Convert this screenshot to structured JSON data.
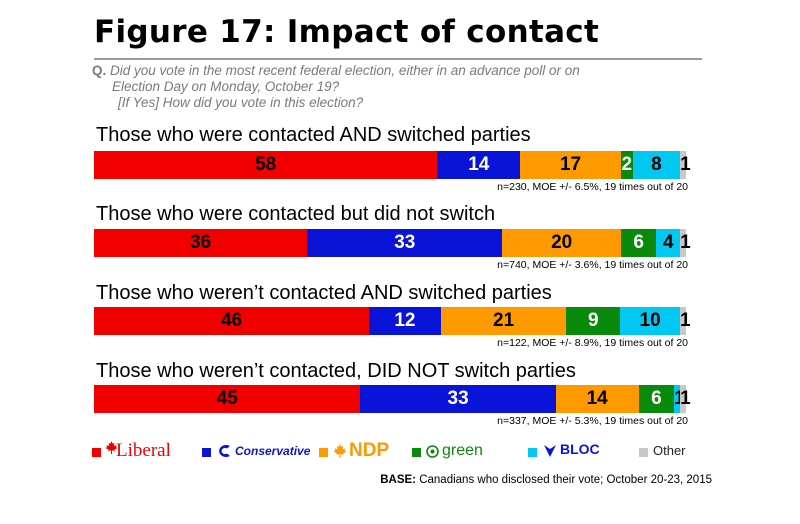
{
  "title": "Figure 17: Impact of contact",
  "question": {
    "prefix": "Q.",
    "line1": "Did you vote in the most recent federal election, either in an advance poll or on",
    "line2": "Election Day on Monday, October 19?",
    "line3": "[If Yes] How did you vote in this election?"
  },
  "colors": {
    "Liberal": "#f20000",
    "Conservative": "#0a14d8",
    "NDP": "#ff9900",
    "Green": "#0a8a0a",
    "Bloc": "#00c8f0",
    "Other": "#c8c8c8"
  },
  "chart_data": {
    "type": "bar",
    "stacked": true,
    "orientation": "horizontal",
    "parties": [
      "Liberal",
      "Conservative",
      "NDP",
      "Green",
      "Bloc",
      "Other"
    ],
    "groups": [
      {
        "title": "Those who were contacted AND switched parties",
        "values": [
          58,
          14,
          17,
          2,
          8,
          1
        ],
        "note": "n=230, MOE +/- 6.5%, 19 times out of 20"
      },
      {
        "title": "Those who were contacted but did not switch",
        "values": [
          36,
          33,
          20,
          6,
          4,
          1
        ],
        "note": "n=740, MOE +/- 3.6%, 19 times out of 20"
      },
      {
        "title": "Those who weren’t contacted AND switched parties",
        "values": [
          46,
          12,
          21,
          9,
          10,
          1
        ],
        "note": "n=122, MOE +/- 8.9%, 19 times out of 20"
      },
      {
        "title": "Those who weren’t contacted, DID NOT switch parties",
        "values": [
          45,
          33,
          14,
          6,
          1,
          1
        ],
        "note": "n=337, MOE +/- 5.3%, 19 times out of 20"
      }
    ]
  },
  "legend": [
    {
      "key": "Liberal",
      "label": "Liberal"
    },
    {
      "key": "Conservative",
      "label": "Conservative"
    },
    {
      "key": "NDP",
      "label": "NDP"
    },
    {
      "key": "Green",
      "label": "green"
    },
    {
      "key": "Bloc",
      "label": "BLOC"
    },
    {
      "key": "Other",
      "label": "Other"
    }
  ],
  "base": {
    "label": "BASE:",
    "text": "Canadians who disclosed their vote; October 20-23, 2015"
  }
}
